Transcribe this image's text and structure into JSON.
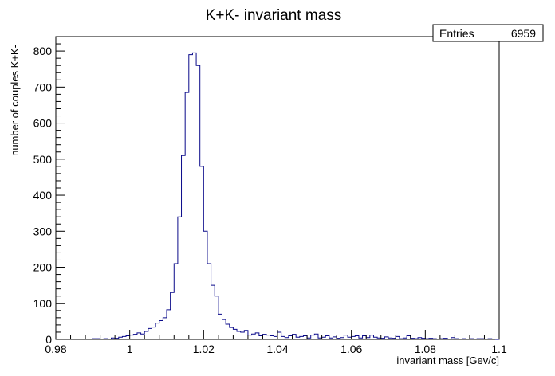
{
  "chart_data": {
    "type": "histogram",
    "title": "K+K- invariant mass",
    "xlabel": "invariant mass [Gev/c]",
    "ylabel": "number of couples K+K-",
    "xlim": [
      0.98,
      1.1
    ],
    "ylim": [
      0,
      840
    ],
    "x_ticks": [
      "0.98",
      "1",
      "1.02",
      "1.04",
      "1.06",
      "1.08",
      "1.1"
    ],
    "y_ticks": [
      "0",
      "100",
      "200",
      "300",
      "400",
      "500",
      "600",
      "700",
      "800"
    ],
    "stats": {
      "label": "Entries",
      "value": "6959"
    },
    "bin_width": 0.001,
    "bins_x": [
      0.989,
      0.99,
      0.991,
      0.992,
      0.993,
      0.994,
      0.995,
      0.996,
      0.997,
      0.998,
      0.999,
      1.0,
      1.001,
      1.002,
      1.003,
      1.004,
      1.005,
      1.006,
      1.007,
      1.008,
      1.009,
      1.01,
      1.011,
      1.012,
      1.013,
      1.014,
      1.015,
      1.016,
      1.017,
      1.018,
      1.019,
      1.02,
      1.021,
      1.022,
      1.023,
      1.024,
      1.025,
      1.026,
      1.027,
      1.028,
      1.029,
      1.03,
      1.031,
      1.032,
      1.033,
      1.034,
      1.035,
      1.036,
      1.037,
      1.038,
      1.039,
      1.04,
      1.041,
      1.042,
      1.043,
      1.044,
      1.045,
      1.046,
      1.047,
      1.048,
      1.049,
      1.05,
      1.051,
      1.052,
      1.053,
      1.054,
      1.055,
      1.056,
      1.057,
      1.058,
      1.059,
      1.06,
      1.061,
      1.062,
      1.063,
      1.064,
      1.065,
      1.066,
      1.067,
      1.068,
      1.069,
      1.07,
      1.071,
      1.072,
      1.073,
      1.074,
      1.075,
      1.076,
      1.077,
      1.078,
      1.079,
      1.08,
      1.081,
      1.082,
      1.083,
      1.084,
      1.085,
      1.086,
      1.087,
      1.088,
      1.089,
      1.09,
      1.091,
      1.092,
      1.093,
      1.094,
      1.095,
      1.096,
      1.097,
      1.098,
      1.099
    ],
    "counts": [
      1,
      2,
      2,
      1,
      2,
      1,
      4,
      3,
      6,
      8,
      10,
      12,
      14,
      18,
      15,
      22,
      30,
      34,
      45,
      52,
      60,
      82,
      130,
      210,
      340,
      510,
      685,
      790,
      795,
      760,
      480,
      300,
      210,
      150,
      120,
      70,
      55,
      42,
      33,
      28,
      22,
      20,
      25,
      12,
      15,
      18,
      10,
      14,
      12,
      10,
      8,
      20,
      8,
      5,
      10,
      14,
      6,
      8,
      10,
      4,
      12,
      15,
      4,
      6,
      10,
      4,
      7,
      3,
      5,
      12,
      6,
      8,
      10,
      4,
      10,
      5,
      12,
      6,
      4,
      3,
      7,
      4,
      3,
      8,
      2,
      4,
      10,
      3,
      2,
      5,
      3,
      2,
      3,
      2,
      1,
      2,
      3,
      1,
      5,
      2,
      1,
      2,
      1,
      2,
      1,
      2,
      2,
      1,
      2,
      1,
      0
    ]
  }
}
